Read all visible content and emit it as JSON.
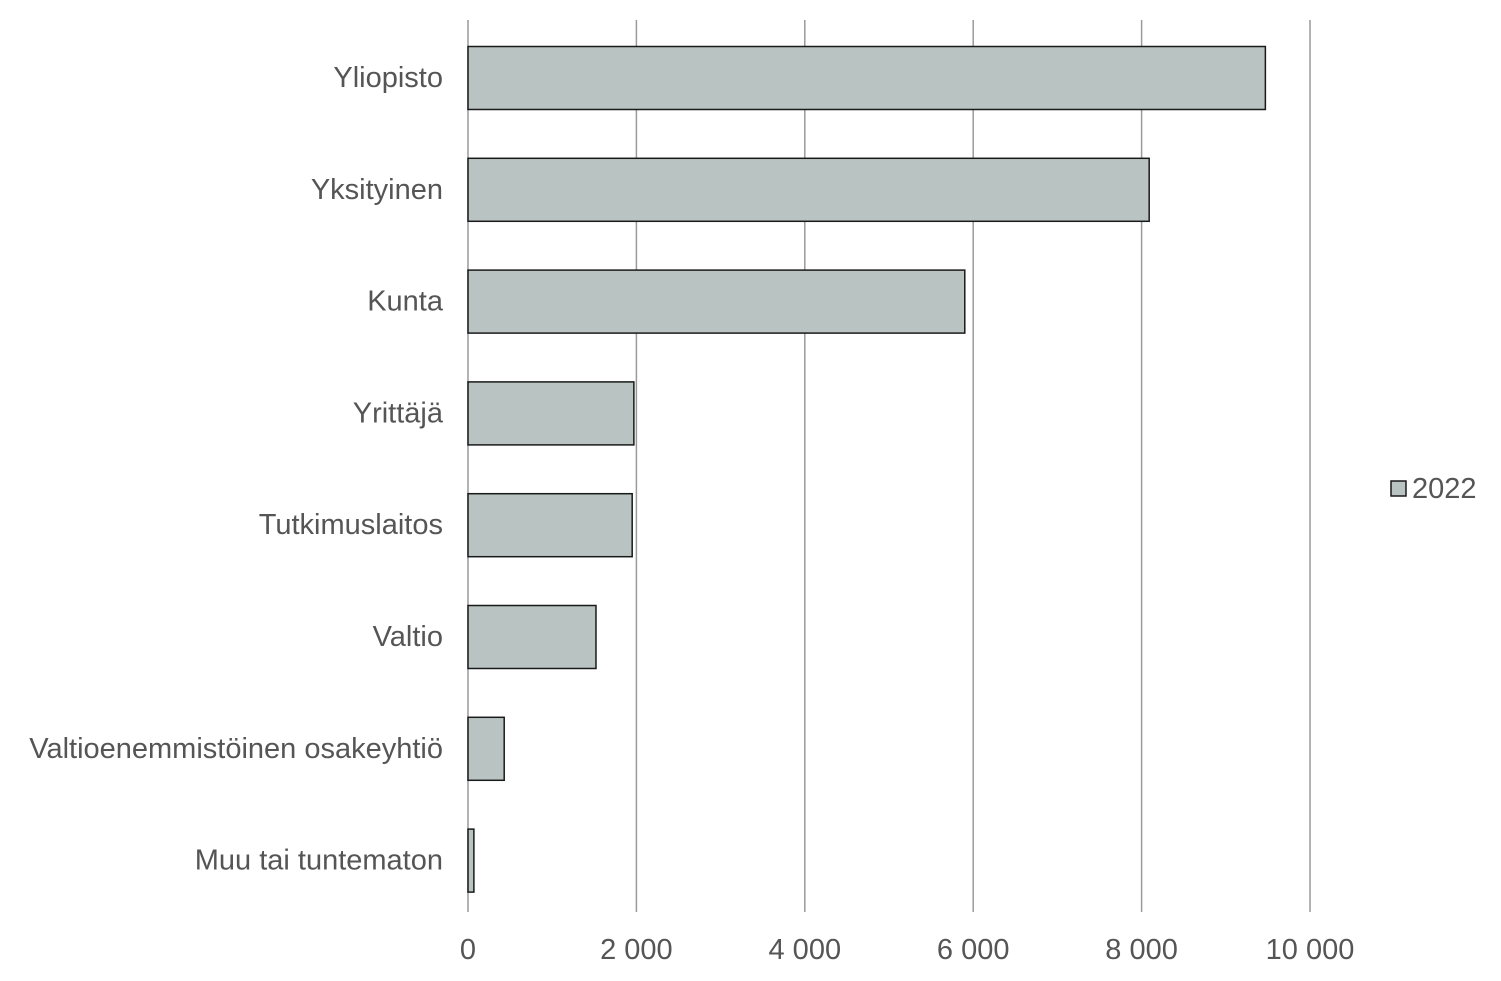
{
  "chart_data": {
    "type": "bar",
    "orientation": "horizontal",
    "categories": [
      "Yliopisto",
      "Yksityinen",
      "Kunta",
      "Yrittäjä",
      "Tutkimuslaitos",
      "Valtio",
      "Valtioenemmistöinen osakeyhtiö",
      "Muu tai tuntematon"
    ],
    "series": [
      {
        "name": "2022",
        "color": "#b8c3c2",
        "values": [
          9470,
          8090,
          5900,
          1970,
          1950,
          1520,
          430,
          70
        ]
      }
    ],
    "xlim": [
      0,
      10000
    ],
    "xticks": [
      0,
      2000,
      4000,
      6000,
      8000,
      10000
    ],
    "xtick_labels": [
      "0",
      "2 000",
      "4 000",
      "6 000",
      "8 000",
      "10 000"
    ],
    "grid": "vertical",
    "legend_position": "right"
  }
}
